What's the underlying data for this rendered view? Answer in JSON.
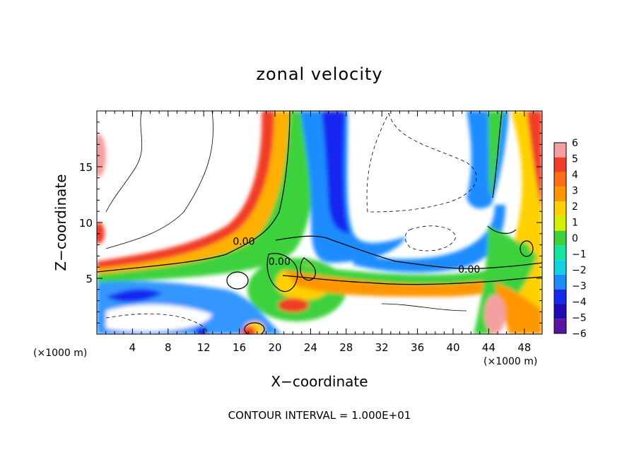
{
  "chart_data": {
    "type": "heatmap",
    "title": "zonal velocity",
    "xlabel": "X−coordinate",
    "ylabel": "Z−coordinate",
    "x_unit_left": "(×1000 m)",
    "x_unit_right": "(×1000 m)",
    "xlim": [
      0,
      50
    ],
    "ylim": [
      0,
      20
    ],
    "xticks": [
      4,
      8,
      12,
      16,
      20,
      24,
      28,
      32,
      36,
      40,
      44,
      48
    ],
    "xtick_labels": [
      "4",
      "8",
      "12",
      "16",
      "20",
      "24",
      "28",
      "32",
      "36",
      "40",
      "44",
      "48"
    ],
    "yticks": [
      5,
      10,
      15
    ],
    "ytick_labels": [
      "5",
      "10",
      "15"
    ],
    "contour_labels": [
      {
        "text": "0.00",
        "x": 16.5,
        "y": 8.0
      },
      {
        "text": "0.00",
        "x": 20.5,
        "y": 6.2
      },
      {
        "text": "0.00",
        "x": 41.8,
        "y": 5.5
      }
    ],
    "footnote": "CONTOUR INTERVAL = 1.000E+01",
    "colorbar": {
      "levels": [
        6,
        5,
        4,
        3,
        2,
        1,
        0,
        -1,
        -2,
        -3,
        -4,
        -5,
        -6
      ],
      "labels": [
        "6",
        "5",
        "4",
        "3",
        "2",
        "1",
        "0",
        "−1",
        "−2",
        "−3",
        "−4",
        "−5",
        "−6"
      ],
      "colors": [
        "#f5a0a0",
        "#f03c28",
        "#ff6e14",
        "#ff9600",
        "#ffd000",
        "#d2f000",
        "#3cd23c",
        "#14e6a0",
        "#14d2e6",
        "#1e8cff",
        "#1428f0",
        "#1e0ab4",
        "#5a14a0"
      ]
    },
    "colors": {
      "positive_band": "#ff6e14",
      "negative_band": "#1e8cff",
      "background": "#ffffff"
    }
  }
}
